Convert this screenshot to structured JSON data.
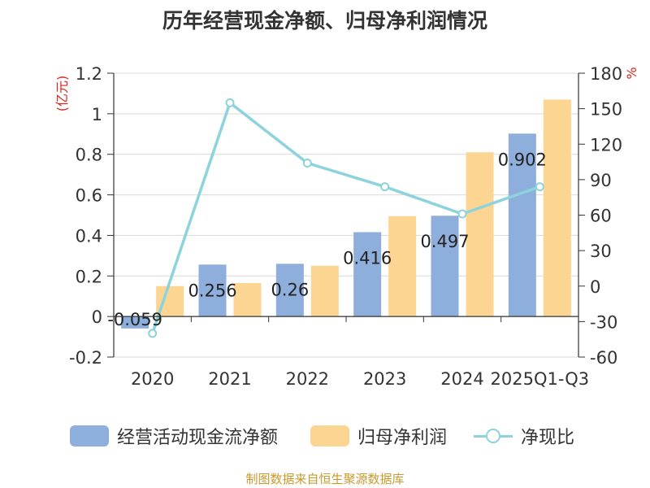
{
  "chart_data": {
    "type": "bar",
    "title": "历年经营现金净额、归母净利润情况",
    "categories": [
      "2020",
      "2021",
      "2022",
      "2023",
      "2024",
      "2025Q1-Q3"
    ],
    "series": [
      {
        "name": "经营活动现金流净额",
        "type": "bar",
        "axis": "left",
        "color": "#8eaedb",
        "values": [
          -0.059,
          0.256,
          0.26,
          0.416,
          0.497,
          0.902
        ]
      },
      {
        "name": "归母净利润",
        "type": "bar",
        "axis": "left",
        "color": "#fdd592",
        "values": [
          0.15,
          0.165,
          0.25,
          0.495,
          0.81,
          1.07
        ]
      },
      {
        "name": "净现比",
        "type": "line",
        "axis": "right",
        "color": "#8dd3dd",
        "values": [
          -40,
          155,
          104,
          84,
          61,
          84
        ]
      }
    ],
    "data_labels": [
      "-0.059",
      "0.256",
      "0.26",
      "0.416",
      "0.497",
      "0.902"
    ],
    "y_left": {
      "label": "(亿元)",
      "ylim": [
        -0.2,
        1.2
      ],
      "ticks": [
        "1.2",
        "1",
        "0.8",
        "0.6",
        "0.4",
        "0.2",
        "0",
        "-0.2"
      ]
    },
    "y_right": {
      "label": "%",
      "ylim": [
        -60,
        180
      ],
      "ticks": [
        "180",
        "150",
        "120",
        "90",
        "60",
        "30",
        "0",
        "-30",
        "-60"
      ]
    },
    "grid": true,
    "legend_position": "bottom"
  },
  "legend": {
    "bar1": "经营活动现金流净额",
    "bar2": "归母净利润",
    "line": "净现比"
  },
  "source": "制图数据来自恒生聚源数据库",
  "colors": {
    "axis_label_red": "#d9251c",
    "source": "#c89a2e"
  }
}
